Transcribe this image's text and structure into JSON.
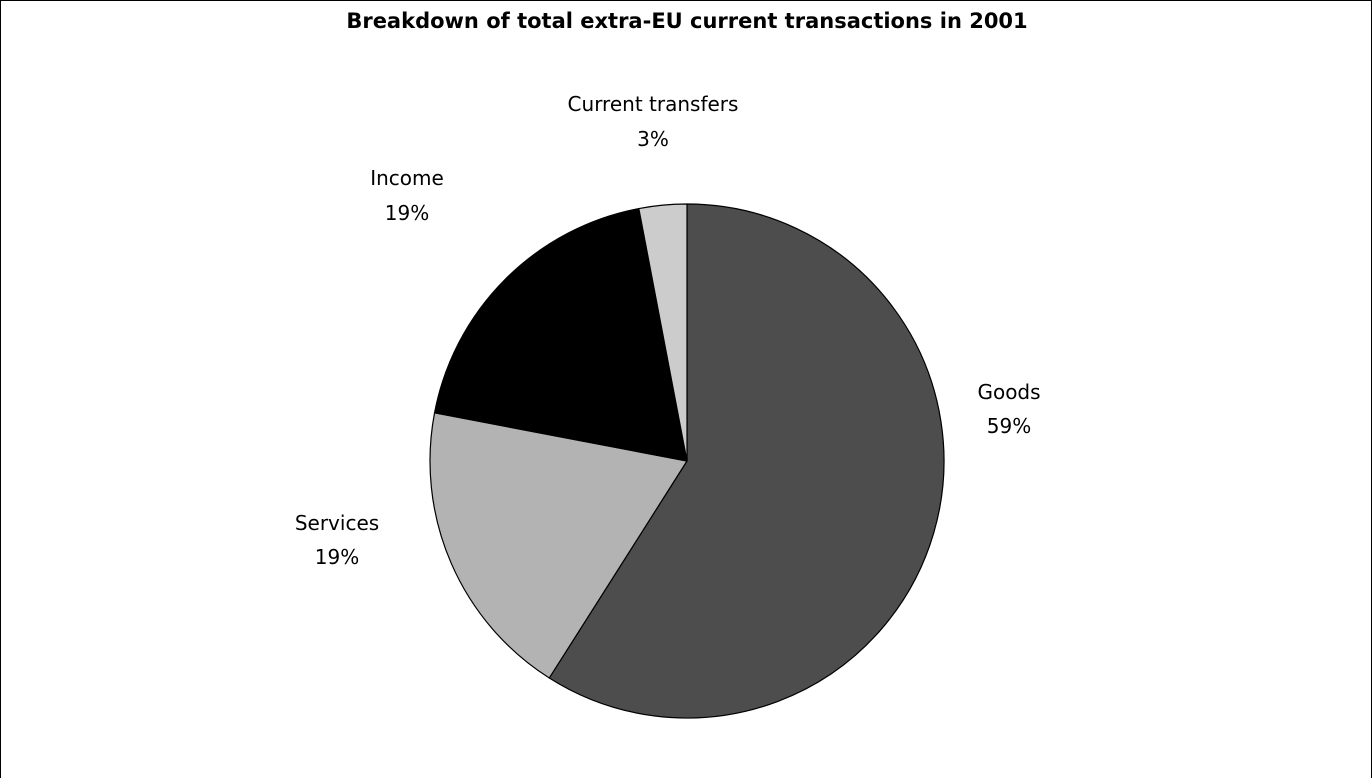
{
  "chart_data": {
    "type": "pie",
    "title": "Breakdown of total extra-EU current transactions in 2001",
    "slices": [
      {
        "label": "Goods",
        "percent_label": "59%",
        "value": 59,
        "color": "#4d4d4d"
      },
      {
        "label": "Services",
        "percent_label": "19%",
        "value": 19,
        "color": "#b3b3b3"
      },
      {
        "label": "Income",
        "percent_label": "19%",
        "value": 19,
        "color": "#000000"
      },
      {
        "label": "Current transfers",
        "percent_label": "3%",
        "value": 3,
        "color": "#cccccc"
      }
    ],
    "start": "12 o'clock",
    "direction": "clockwise",
    "legend": "none"
  }
}
